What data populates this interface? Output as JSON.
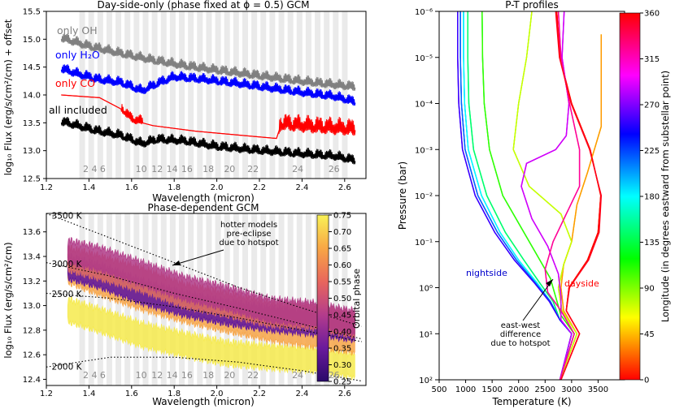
{
  "chart_data": [
    {
      "id": "top",
      "type": "line",
      "title": "Day-side-only (phase fixed at ϕ = 0.5) GCM",
      "xlabel": "Wavelength (micron)",
      "ylabel": "log₁₀ Flux (erg/s/cm²/cm) + offset",
      "xlim": [
        1.2,
        2.7
      ],
      "ylim": [
        12.5,
        15.5
      ],
      "x_ticks": [
        1.2,
        1.4,
        1.6,
        1.8,
        2.0,
        2.2,
        2.4,
        2.6
      ],
      "x_tick_labels": [
        "1.2",
        "1.4",
        "1.6",
        "1.8",
        "2.0",
        "2.2",
        "2.4",
        "2.6"
      ],
      "y_ticks": [
        12.5,
        13.0,
        13.5,
        14.0,
        14.5,
        15.0,
        15.5
      ],
      "y_tick_labels": [
        "12.5",
        "13.0",
        "13.5",
        "14.0",
        "14.5",
        "15.0",
        "15.5"
      ],
      "series": [
        {
          "name": "only OH",
          "color": "#808080",
          "x": [
            1.27,
            1.4,
            1.55,
            1.7,
            1.85,
            2.0,
            2.2,
            2.4,
            2.65
          ],
          "y": [
            15.0,
            14.85,
            14.72,
            14.6,
            14.5,
            14.42,
            14.32,
            14.22,
            14.12
          ]
        },
        {
          "name": "only H₂O",
          "color": "#0000ff",
          "x": [
            1.27,
            1.35,
            1.45,
            1.55,
            1.65,
            1.72,
            1.8,
            1.95,
            2.1,
            2.25,
            2.4,
            2.55,
            2.65
          ],
          "y": [
            14.45,
            14.35,
            14.25,
            14.2,
            14.05,
            14.18,
            14.3,
            14.25,
            14.18,
            14.1,
            14.02,
            13.95,
            13.85
          ]
        },
        {
          "name": "only CO",
          "color": "#ff0000",
          "x": [
            1.27,
            1.45,
            1.55,
            1.6,
            1.7,
            1.9,
            2.1,
            2.28,
            2.3,
            2.45,
            2.65
          ],
          "y": [
            14.0,
            13.95,
            13.75,
            13.55,
            13.45,
            13.35,
            13.28,
            13.22,
            13.45,
            13.4,
            13.35
          ]
        },
        {
          "name": "all included",
          "color": "#000000",
          "x": [
            1.27,
            1.35,
            1.45,
            1.55,
            1.65,
            1.72,
            1.85,
            2.0,
            2.2,
            2.4,
            2.55,
            2.65
          ],
          "y": [
            13.5,
            13.42,
            13.32,
            13.25,
            13.1,
            13.18,
            13.15,
            13.05,
            12.98,
            12.92,
            12.88,
            12.8
          ]
        }
      ],
      "band_labels": [
        "2",
        "4",
        "6",
        "10",
        "12",
        "14",
        "16",
        "18",
        "20",
        "22",
        "24",
        "26"
      ]
    },
    {
      "id": "bottom",
      "type": "line",
      "title": "Phase-dependent GCM",
      "xlabel": "Wavelength (micron)",
      "ylabel": "log₁₀ Flux (erg/s/cm²/cm)",
      "xlim": [
        1.2,
        2.7
      ],
      "ylim": [
        12.35,
        13.75
      ],
      "x_ticks": [
        1.2,
        1.4,
        1.6,
        1.8,
        2.0,
        2.2,
        2.4,
        2.6
      ],
      "x_tick_labels": [
        "1.2",
        "1.4",
        "1.6",
        "1.8",
        "2.0",
        "2.2",
        "2.4",
        "2.6"
      ],
      "y_ticks": [
        12.4,
        12.6,
        12.8,
        13.0,
        13.2,
        13.4,
        13.6
      ],
      "y_tick_labels": [
        "12.4",
        "12.6",
        "12.8",
        "13.0",
        "13.2",
        "13.4",
        "13.6"
      ],
      "blackbody_curves": [
        {
          "label": "3500 K",
          "x": [
            1.2,
            1.5,
            1.8,
            2.1,
            2.4,
            2.7
          ],
          "y": [
            13.75,
            13.55,
            13.35,
            13.15,
            12.98,
            12.82
          ]
        },
        {
          "label": "3000 K",
          "x": [
            1.2,
            1.5,
            1.8,
            2.1,
            2.4,
            2.7
          ],
          "y": [
            13.35,
            13.24,
            13.1,
            12.98,
            12.85,
            12.72
          ]
        },
        {
          "label": "2500 K",
          "x": [
            1.2,
            1.5,
            1.8,
            2.1,
            2.4,
            2.7
          ],
          "y": [
            13.1,
            13.06,
            12.99,
            12.9,
            12.8,
            12.7
          ]
        },
        {
          "label": "2000 K",
          "x": [
            1.2,
            1.5,
            1.8,
            2.1,
            2.4,
            2.7
          ],
          "y": [
            12.5,
            12.58,
            12.58,
            12.54,
            12.47,
            12.38
          ]
        }
      ],
      "phase_series": [
        {
          "phase": 0.3,
          "color": "#5b12a0",
          "x": [
            1.3,
            1.45,
            1.65,
            1.85,
            2.05,
            2.25,
            2.45,
            2.65
          ],
          "y": [
            13.35,
            13.28,
            13.15,
            13.05,
            12.98,
            12.93,
            12.9,
            12.85
          ]
        },
        {
          "phase": 0.42,
          "color": "#b03a87",
          "x": [
            1.3,
            1.45,
            1.65,
            1.85,
            2.05,
            2.25,
            2.45,
            2.65
          ],
          "y": [
            13.48,
            13.42,
            13.3,
            13.18,
            13.1,
            13.0,
            12.97,
            12.9
          ]
        },
        {
          "phase": 0.5,
          "color": "#e07060",
          "x": [
            1.3,
            1.45,
            1.65,
            1.85,
            2.05,
            2.25,
            2.45,
            2.65
          ],
          "y": [
            13.42,
            13.35,
            13.25,
            13.12,
            13.05,
            12.97,
            12.95,
            12.88
          ]
        },
        {
          "phase": 0.6,
          "color": "#f7a446",
          "x": [
            1.3,
            1.45,
            1.65,
            1.85,
            2.05,
            2.25,
            2.45,
            2.65
          ],
          "y": [
            13.32,
            13.22,
            13.1,
            13.0,
            12.92,
            12.85,
            12.8,
            12.75
          ]
        },
        {
          "phase": 0.72,
          "color": "#f6ea4c",
          "x": [
            1.3,
            1.45,
            1.65,
            1.85,
            2.05,
            2.25,
            2.45,
            2.65
          ],
          "y": [
            13.0,
            12.92,
            12.8,
            12.72,
            12.65,
            12.62,
            12.6,
            12.55
          ]
        }
      ],
      "band_labels": [
        "2",
        "4",
        "6",
        "10",
        "12",
        "14",
        "16",
        "18",
        "20",
        "22",
        "24",
        "26"
      ],
      "annotation": "hotter models\npre-eclipse\ndue to hotspot",
      "colorbar": {
        "label": "Orbital phase",
        "min": 0.25,
        "max": 0.75,
        "ticks": [
          "0.25",
          "0.30",
          "0.35",
          "0.40",
          "0.45",
          "0.50",
          "0.55",
          "0.60",
          "0.65",
          "0.70",
          "0.75"
        ]
      }
    },
    {
      "id": "pt",
      "type": "line",
      "title": "P-T profiles",
      "xlabel": "Temperature (K)",
      "ylabel": "Pressure (bar)",
      "xlim": [
        500,
        4000
      ],
      "ylim_log10": [
        -6,
        2
      ],
      "x_ticks": [
        500,
        1000,
        1500,
        2000,
        2500,
        3000,
        3500
      ],
      "x_tick_labels": [
        "500",
        "1000",
        "1500",
        "2000",
        "2500",
        "3000",
        "3500"
      ],
      "y_tick_labels": [
        "10⁻⁶",
        "10⁻⁵",
        "10⁻⁴",
        "10⁻³",
        "10⁻²",
        "10⁻¹",
        "10⁰",
        "10¹",
        "10²"
      ],
      "profiles": [
        {
          "longitude": 0,
          "logp": [
            -6,
            -5,
            -4,
            -3,
            -2,
            -1.2,
            -0.6,
            0,
            0.5,
            1,
            2
          ],
          "temp": [
            2720,
            2780,
            3000,
            3350,
            3550,
            3500,
            3300,
            2950,
            2900,
            3150,
            2800
          ]
        },
        {
          "longitude": 36,
          "logp": [
            -5.5,
            -4.5,
            -3.5,
            -2.5,
            -1.8,
            -1,
            -0.5,
            0,
            0.5,
            1,
            2
          ],
          "temp": [
            3560,
            3560,
            3560,
            3300,
            3100,
            3000,
            2850,
            2800,
            2850,
            3100,
            2780
          ]
        },
        {
          "longitude": 72,
          "logp": [
            -6,
            -5,
            -4,
            -3,
            -2.2,
            -1.6,
            -1,
            -0.5,
            0,
            0.5,
            1,
            2
          ],
          "temp": [
            2250,
            2150,
            2000,
            1900,
            2200,
            2800,
            3000,
            2850,
            2750,
            2820,
            3100,
            2780
          ]
        },
        {
          "longitude": 108,
          "logp": [
            -6,
            -5,
            -4,
            -3,
            -2,
            -1.4,
            -0.8,
            -0.2,
            0.2,
            0.6,
            1,
            2
          ],
          "temp": [
            1310,
            1320,
            1350,
            1450,
            1700,
            2000,
            2300,
            2600,
            2700,
            2800,
            3050,
            2780
          ]
        },
        {
          "longitude": 144,
          "logp": [
            -6,
            -5,
            -4,
            -3,
            -2,
            -1.2,
            -0.6,
            -0.1,
            0.3,
            0.7,
            1,
            2
          ],
          "temp": [
            1040,
            1040,
            1060,
            1150,
            1400,
            1750,
            2100,
            2400,
            2650,
            2780,
            3000,
            2780
          ]
        },
        {
          "longitude": 180,
          "logp": [
            -6,
            -5,
            -4,
            -3,
            -2,
            -1.2,
            -0.6,
            -0.1,
            0.3,
            0.7,
            1,
            2
          ],
          "temp": [
            960,
            960,
            980,
            1050,
            1300,
            1650,
            2000,
            2350,
            2600,
            2780,
            3000,
            2780
          ]
        },
        {
          "longitude": 216,
          "logp": [
            -6,
            -5,
            -4,
            -3,
            -2,
            -1.2,
            -0.6,
            -0.1,
            0.3,
            0.7,
            1,
            2
          ],
          "temp": [
            900,
            900,
            920,
            990,
            1230,
            1600,
            1960,
            2320,
            2600,
            2780,
            3000,
            2780
          ]
        },
        {
          "longitude": 252,
          "logp": [
            -6,
            -5,
            -4,
            -3,
            -2,
            -1.2,
            -0.6,
            -0.1,
            0.3,
            0.7,
            1,
            2
          ],
          "temp": [
            850,
            850,
            870,
            940,
            1180,
            1550,
            1920,
            2300,
            2580,
            2780,
            3000,
            2780
          ]
        },
        {
          "longitude": 288,
          "logp": [
            -6,
            -5,
            -4,
            -3.3,
            -3,
            -2.7,
            -2.2,
            -1.5,
            -0.9,
            -0.3,
            0.2,
            0.7,
            1,
            2
          ],
          "temp": [
            2860,
            2820,
            2950,
            2900,
            2700,
            2150,
            2050,
            2250,
            2550,
            2750,
            2800,
            2800,
            3000,
            2780
          ]
        },
        {
          "longitude": 324,
          "logp": [
            -6,
            -5,
            -4,
            -3,
            -2.2,
            -1.6,
            -1,
            -0.4,
            0.1,
            0.5,
            1,
            2
          ],
          "temp": [
            2750,
            2800,
            2960,
            3150,
            3150,
            2900,
            2650,
            2500,
            2550,
            2800,
            3050,
            2780
          ]
        },
        {
          "longitude": 354,
          "logp": [
            -6,
            -5,
            -4,
            -3,
            -2,
            -1.2,
            -0.6,
            0,
            0.5,
            1,
            2
          ],
          "temp": [
            2700,
            2770,
            2990,
            3340,
            3560,
            3520,
            3320,
            2960,
            2900,
            3150,
            2800
          ]
        }
      ],
      "annotations": {
        "nightside": "nightside",
        "dayside": "dayside",
        "eastwest": "east-west\ndifference\ndue to hotspot"
      },
      "colorbar": {
        "label": "Longitude (in degrees eastward from substellar point)",
        "min": 0,
        "max": 360,
        "ticks": [
          "0",
          "45",
          "90",
          "135",
          "180",
          "225",
          "270",
          "315",
          "360"
        ]
      }
    }
  ]
}
